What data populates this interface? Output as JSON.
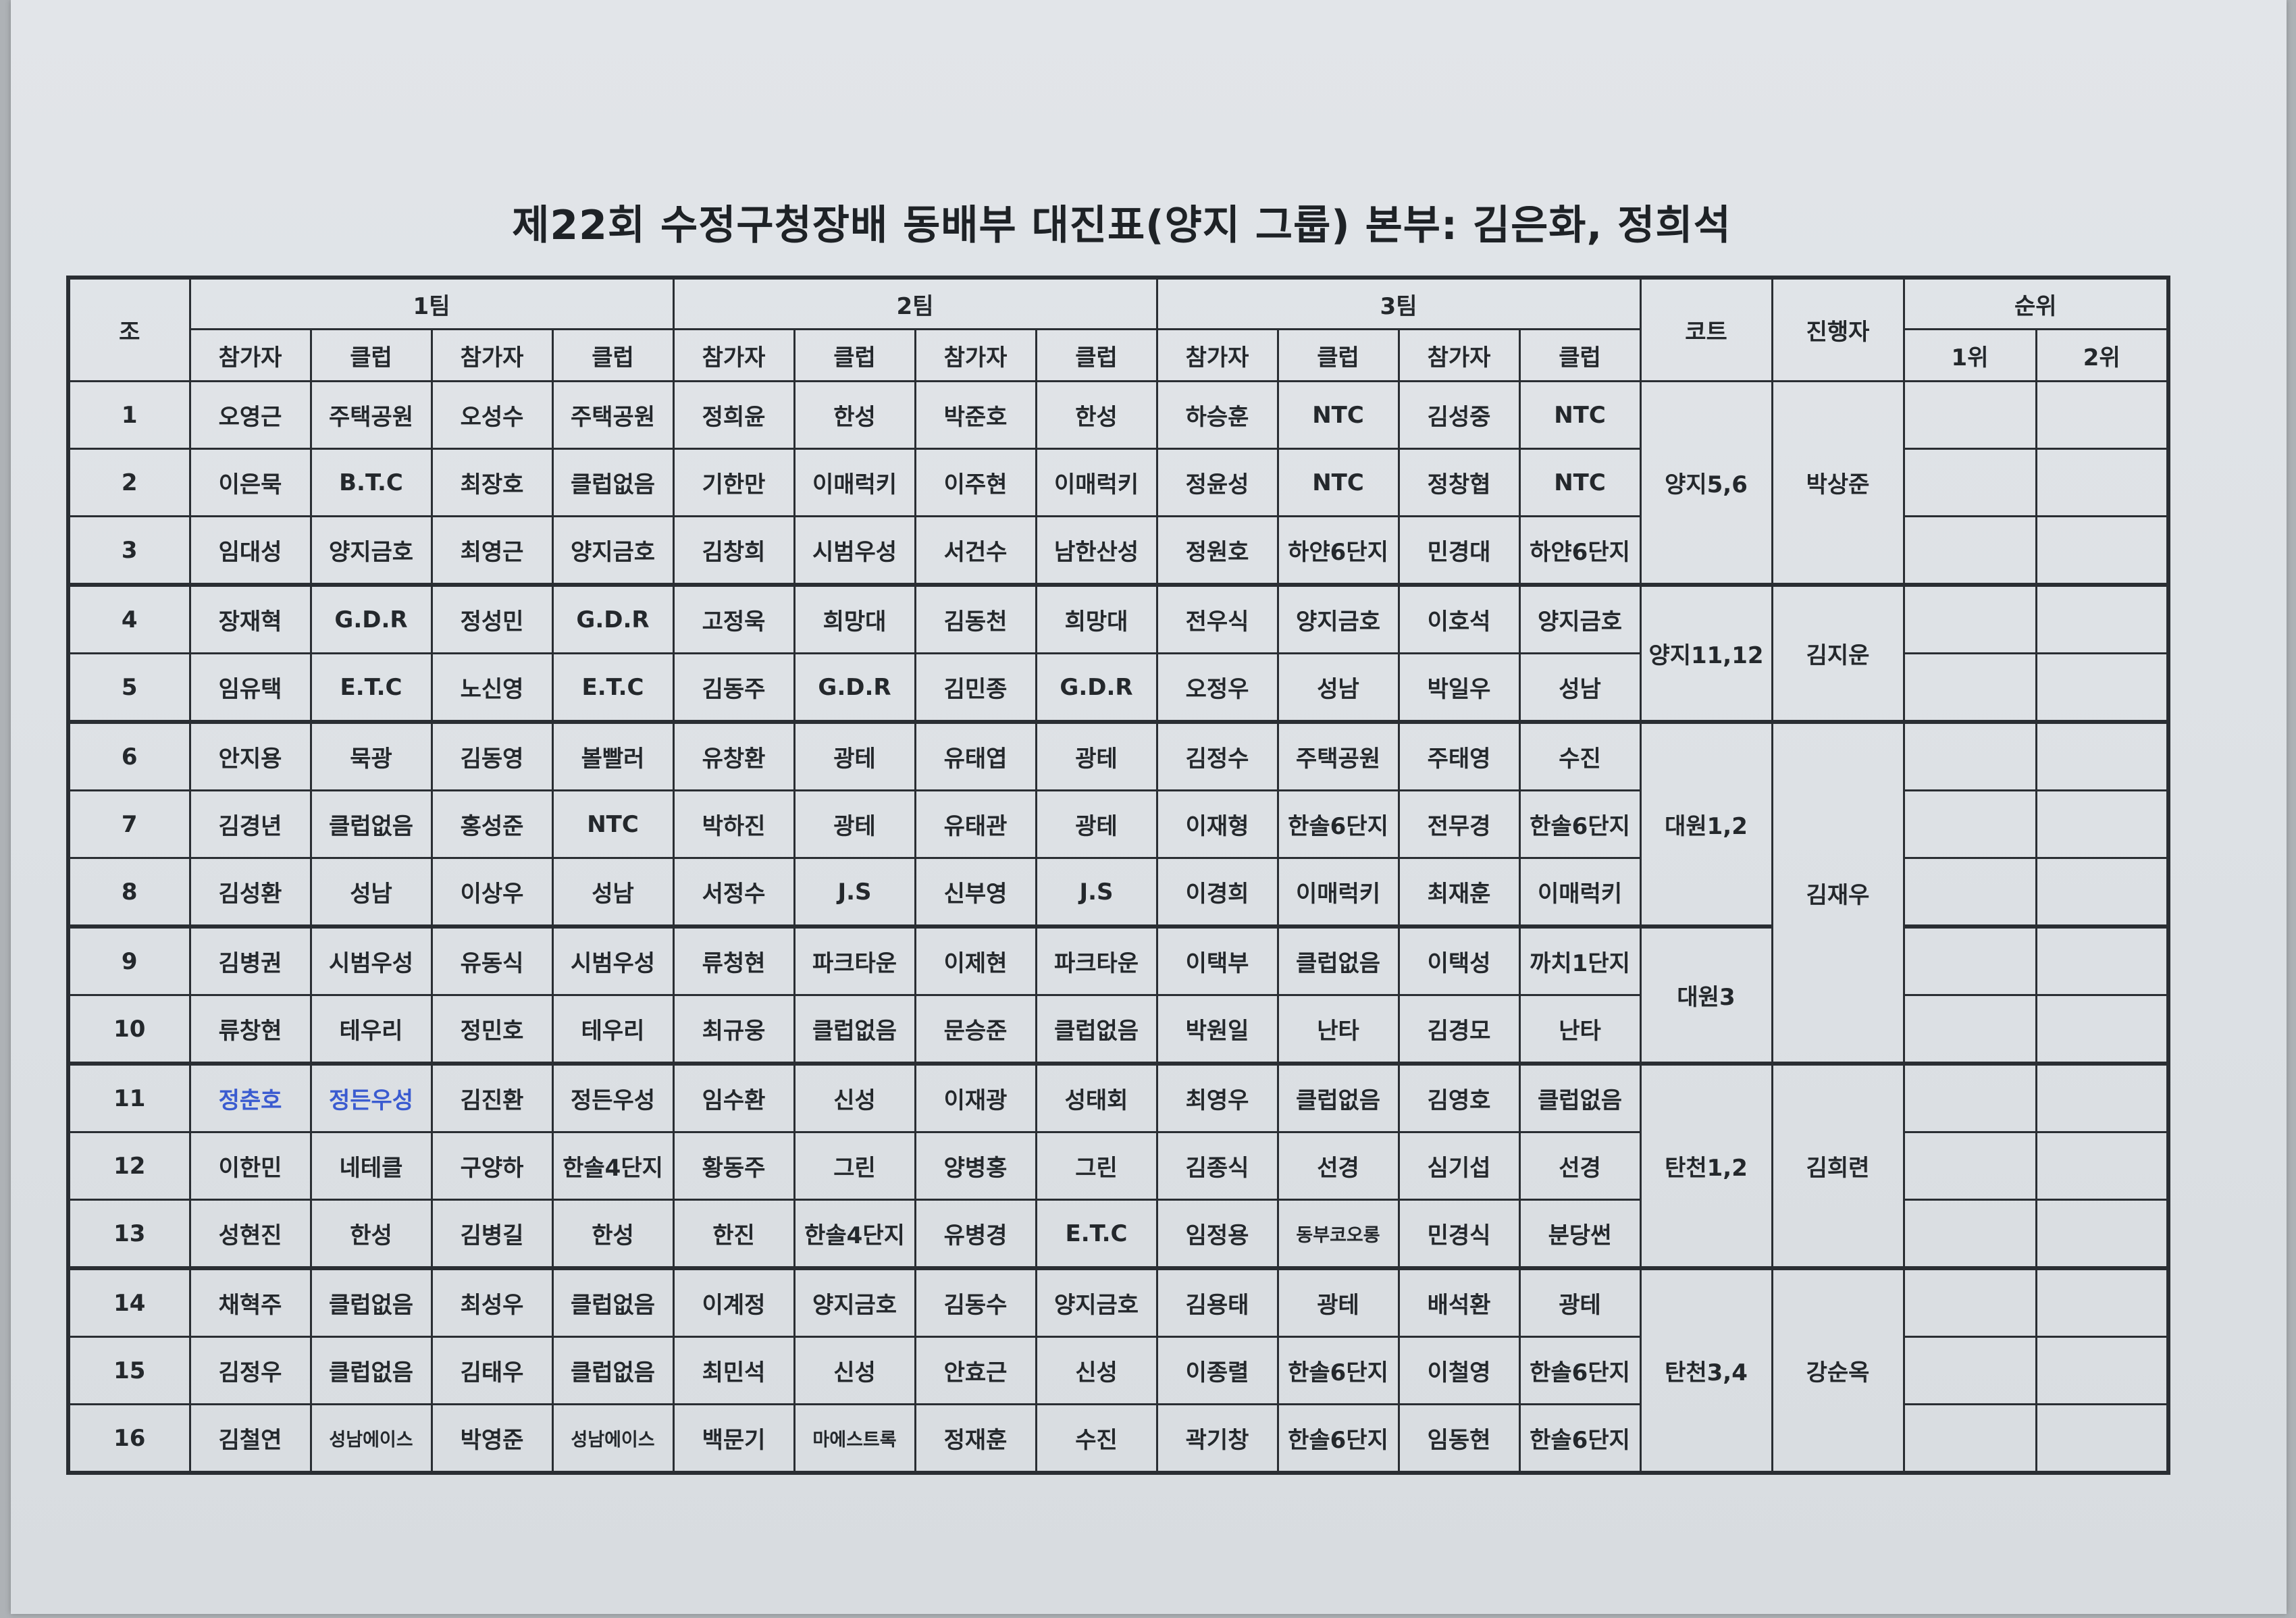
{
  "title": "제22회 수정구청장배 동배부 대진표(양지 그룹)  본부: 김은화, 정희석",
  "headers": {
    "group": "조",
    "teams": [
      "1팀",
      "2팀",
      "3팀"
    ],
    "participant": "참가자",
    "club": "클럽",
    "court": "코트",
    "referee": "진행자",
    "rank": "순위",
    "rank_first": "1위",
    "rank_second": "2위"
  },
  "highlight_color": "#3a5bd0",
  "rows": [
    {
      "no": "1",
      "cells": [
        "오영근",
        "주택공원",
        "오성수",
        "주택공원",
        "정희윤",
        "한성",
        "박준호",
        "한성",
        "하승훈",
        "NTC",
        "김성중",
        "NTC"
      ]
    },
    {
      "no": "2",
      "cells": [
        "이은묵",
        "B.T.C",
        "최장호",
        "클럽없음",
        "기한만",
        "이매럭키",
        "이주현",
        "이매럭키",
        "정윤성",
        "NTC",
        "정창협",
        "NTC"
      ]
    },
    {
      "no": "3",
      "cells": [
        "임대성",
        "양지금호",
        "최영근",
        "양지금호",
        "김창희",
        "시범우성",
        "서건수",
        "남한산성",
        "정원호",
        "하얀6단지",
        "민경대",
        "하얀6단지"
      ]
    },
    {
      "no": "4",
      "cells": [
        "장재혁",
        "G.D.R",
        "정성민",
        "G.D.R",
        "고정욱",
        "희망대",
        "김동천",
        "희망대",
        "전우식",
        "양지금호",
        "이호석",
        "양지금호"
      ]
    },
    {
      "no": "5",
      "cells": [
        "임유택",
        "E.T.C",
        "노신영",
        "E.T.C",
        "김동주",
        "G.D.R",
        "김민종",
        "G.D.R",
        "오정우",
        "성남",
        "박일우",
        "성남"
      ]
    },
    {
      "no": "6",
      "cells": [
        "안지용",
        "묵광",
        "김동영",
        "볼빨러",
        "유창환",
        "광테",
        "유태엽",
        "광테",
        "김정수",
        "주택공원",
        "주태영",
        "수진"
      ]
    },
    {
      "no": "7",
      "cells": [
        "김경년",
        "클럽없음",
        "홍성준",
        "NTC",
        "박하진",
        "광테",
        "유태관",
        "광테",
        "이재형",
        "한솔6단지",
        "전무경",
        "한솔6단지"
      ]
    },
    {
      "no": "8",
      "cells": [
        "김성환",
        "성남",
        "이상우",
        "성남",
        "서정수",
        "J.S",
        "신부영",
        "J.S",
        "이경희",
        "이매럭키",
        "최재훈",
        "이매럭키"
      ]
    },
    {
      "no": "9",
      "cells": [
        "김병권",
        "시범우성",
        "유동식",
        "시범우성",
        "류청현",
        "파크타운",
        "이제현",
        "파크타운",
        "이택부",
        "클럽없음",
        "이택성",
        "까치1단지"
      ]
    },
    {
      "no": "10",
      "cells": [
        "류창현",
        "테우리",
        "정민호",
        "테우리",
        "최규웅",
        "클럽없음",
        "문승준",
        "클럽없음",
        "박원일",
        "난타",
        "김경모",
        "난타"
      ]
    },
    {
      "no": "11",
      "cells": [
        "정춘호",
        "정든우성",
        "김진환",
        "정든우성",
        "임수환",
        "신성",
        "이재광",
        "성태회",
        "최영우",
        "클럽없음",
        "김영호",
        "클럽없음"
      ],
      "highlight": [
        0,
        1
      ]
    },
    {
      "no": "12",
      "cells": [
        "이한민",
        "네테클",
        "구양하",
        "한솔4단지",
        "황동주",
        "그린",
        "양병홍",
        "그린",
        "김종식",
        "선경",
        "심기섭",
        "선경"
      ]
    },
    {
      "no": "13",
      "cells": [
        "성현진",
        "한성",
        "김병길",
        "한성",
        "한진",
        "한솔4단지",
        "유병경",
        "E.T.C",
        "임정용",
        "동부코오롱",
        "민경식",
        "분당썬"
      ]
    },
    {
      "no": "14",
      "cells": [
        "채혁주",
        "클럽없음",
        "최성우",
        "클럽없음",
        "이계정",
        "양지금호",
        "김동수",
        "양지금호",
        "김용태",
        "광테",
        "배석환",
        "광테"
      ]
    },
    {
      "no": "15",
      "cells": [
        "김정우",
        "클럽없음",
        "김태우",
        "클럽없음",
        "최민석",
        "신성",
        "안효근",
        "신성",
        "이종렬",
        "한솔6단지",
        "이철영",
        "한솔6단지"
      ]
    },
    {
      "no": "16",
      "cells": [
        "김철연",
        "성남에이스",
        "박영준",
        "성남에이스",
        "백문기",
        "마에스트록",
        "정재훈",
        "수진",
        "곽기창",
        "한솔6단지",
        "임동현",
        "한솔6단지"
      ]
    }
  ],
  "courts": [
    {
      "label": "양지5,6",
      "groups": [
        "1",
        "2",
        "3"
      ]
    },
    {
      "label": "양지11,12",
      "groups": [
        "4",
        "5"
      ]
    },
    {
      "label": "대원1,2",
      "groups": [
        "6",
        "7",
        "8"
      ]
    },
    {
      "label": "대원3",
      "groups": [
        "9",
        "10"
      ]
    },
    {
      "label": "탄천1,2",
      "groups": [
        "11",
        "12",
        "13"
      ]
    },
    {
      "label": "탄천3,4",
      "groups": [
        "14",
        "15",
        "16"
      ]
    }
  ],
  "referees": [
    {
      "name": "박상준",
      "groups": [
        "1",
        "2",
        "3"
      ]
    },
    {
      "name": "김지운",
      "groups": [
        "4",
        "5"
      ]
    },
    {
      "name": "김재우",
      "groups": [
        "6",
        "7",
        "8",
        "9",
        "10"
      ]
    },
    {
      "name": "김희련",
      "groups": [
        "11",
        "12",
        "13"
      ]
    },
    {
      "name": "강순옥",
      "groups": [
        "14",
        "15",
        "16"
      ]
    }
  ]
}
